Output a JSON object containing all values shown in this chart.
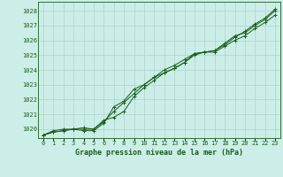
{
  "title": "Graphe pression niveau de la mer (hPa)",
  "bg_color": "#cceee8",
  "grid_color": "#aad4cc",
  "line_color": "#1a5c1a",
  "xlim": [
    -0.5,
    23.5
  ],
  "ylim": [
    1019.4,
    1028.6
  ],
  "yticks": [
    1020,
    1021,
    1022,
    1023,
    1024,
    1025,
    1026,
    1027,
    1028
  ],
  "xticks": [
    0,
    1,
    2,
    3,
    4,
    5,
    6,
    7,
    8,
    9,
    10,
    11,
    12,
    13,
    14,
    15,
    16,
    17,
    18,
    19,
    20,
    21,
    22,
    23
  ],
  "line1": [
    1019.6,
    1019.8,
    1019.9,
    1020.0,
    1019.9,
    1019.9,
    1020.4,
    1021.5,
    1021.9,
    1022.7,
    1023.0,
    1023.5,
    1024.0,
    1024.3,
    1024.7,
    1025.1,
    1025.2,
    1025.3,
    1025.8,
    1026.3,
    1026.5,
    1027.0,
    1027.4,
    1028.0
  ],
  "line2": [
    1019.6,
    1019.8,
    1019.9,
    1020.0,
    1020.0,
    1020.0,
    1020.5,
    1021.2,
    1021.8,
    1022.4,
    1023.0,
    1023.5,
    1023.8,
    1024.1,
    1024.5,
    1025.1,
    1025.2,
    1025.2,
    1025.6,
    1026.0,
    1026.3,
    1026.8,
    1027.2,
    1027.7
  ],
  "line3": [
    1019.6,
    1019.9,
    1020.0,
    1020.0,
    1020.1,
    1020.0,
    1020.6,
    1020.8,
    1021.2,
    1022.2,
    1022.8,
    1023.3,
    1023.8,
    1024.1,
    1024.5,
    1025.0,
    1025.2,
    1025.3,
    1025.7,
    1026.2,
    1026.6,
    1027.1,
    1027.5,
    1028.1
  ]
}
